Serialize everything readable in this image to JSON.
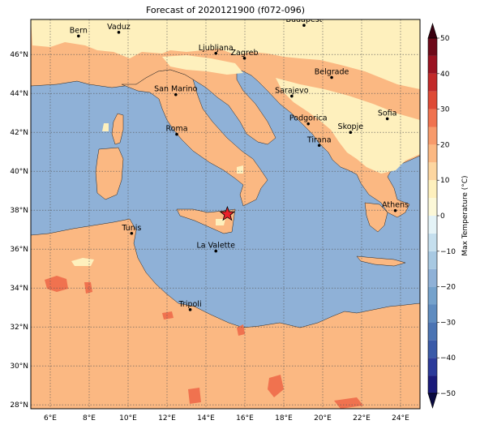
{
  "title": "Forecast of 2020121900 (f072-096)",
  "map": {
    "lon_range": [
      5,
      25
    ],
    "lat_range": [
      27.8,
      47.8
    ],
    "lon_ticks": [
      "6°E",
      "8°E",
      "10°E",
      "12°E",
      "14°E",
      "16°E",
      "18°E",
      "20°E",
      "22°E",
      "24°E"
    ],
    "lon_tick_values": [
      6,
      8,
      10,
      12,
      14,
      16,
      18,
      20,
      22,
      24
    ],
    "lat_ticks": [
      "28°N",
      "30°N",
      "32°N",
      "34°N",
      "36°N",
      "38°N",
      "40°N",
      "42°N",
      "44°N",
      "46°N"
    ],
    "lat_tick_values": [
      28,
      30,
      32,
      34,
      36,
      38,
      40,
      42,
      44,
      46
    ],
    "sea_color": "#8fb1d7",
    "marker": {
      "name": "star-marker",
      "lon": 15.1,
      "lat": 37.8,
      "color": "#e8212a"
    },
    "cities": [
      {
        "name": "Bern",
        "lon": 7.45,
        "lat": 46.95
      },
      {
        "name": "Vaduz",
        "lon": 9.52,
        "lat": 47.14
      },
      {
        "name": "Budapest",
        "lon": 19.04,
        "lat": 47.5
      },
      {
        "name": "Ljubljana",
        "lon": 14.51,
        "lat": 46.06
      },
      {
        "name": "Zagreb",
        "lon": 15.98,
        "lat": 45.81
      },
      {
        "name": "Belgrade",
        "lon": 20.46,
        "lat": 44.82
      },
      {
        "name": "San Marino",
        "lon": 12.45,
        "lat": 43.94
      },
      {
        "name": "Sarajevo",
        "lon": 18.41,
        "lat": 43.86
      },
      {
        "name": "Sofia",
        "lon": 23.32,
        "lat": 42.7
      },
      {
        "name": "Roma",
        "lon": 12.5,
        "lat": 41.9
      },
      {
        "name": "Podgorica",
        "lon": 19.26,
        "lat": 42.44
      },
      {
        "name": "Skopje",
        "lon": 21.43,
        "lat": 42.0
      },
      {
        "name": "Tirana",
        "lon": 19.82,
        "lat": 41.33
      },
      {
        "name": "Athens",
        "lon": 23.73,
        "lat": 37.98
      },
      {
        "name": "Tunis",
        "lon": 10.18,
        "lat": 36.81
      },
      {
        "name": "La Valette",
        "lon": 14.51,
        "lat": 35.9
      },
      {
        "name": "Tripoli",
        "lon": 13.19,
        "lat": 32.89
      }
    ]
  },
  "colorbar": {
    "label": "Max Temperature (°C)",
    "ticks": [
      "−50",
      "−40",
      "−30",
      "−20",
      "−10",
      "0",
      "10",
      "20",
      "30",
      "40",
      "50"
    ],
    "tick_values": [
      -50,
      -40,
      -30,
      -20,
      -10,
      0,
      10,
      20,
      30,
      40,
      50
    ],
    "bins": [
      {
        "from": -50,
        "to": -45,
        "color": "#1a1a7a"
      },
      {
        "from": -45,
        "to": -40,
        "color": "#2b3a9a"
      },
      {
        "from": -40,
        "to": -35,
        "color": "#3a5aa8"
      },
      {
        "from": -35,
        "to": -30,
        "color": "#4b74b3"
      },
      {
        "from": -30,
        "to": -25,
        "color": "#5f8cc0"
      },
      {
        "from": -25,
        "to": -20,
        "color": "#75a2cc"
      },
      {
        "from": -20,
        "to": -15,
        "color": "#8fb1d7"
      },
      {
        "from": -15,
        "to": -10,
        "color": "#a8c9e2"
      },
      {
        "from": -10,
        "to": -5,
        "color": "#c5dfee"
      },
      {
        "from": -5,
        "to": 0,
        "color": "#e4f3f7"
      },
      {
        "from": 0,
        "to": 5,
        "color": "#fcf8d8"
      },
      {
        "from": 5,
        "to": 10,
        "color": "#fef0bd"
      },
      {
        "from": 10,
        "to": 15,
        "color": "#fdd6a0"
      },
      {
        "from": 15,
        "to": 20,
        "color": "#fbb882"
      },
      {
        "from": 20,
        "to": 25,
        "color": "#f79a6b"
      },
      {
        "from": 25,
        "to": 30,
        "color": "#f0724f"
      },
      {
        "from": 30,
        "to": 35,
        "color": "#de4a36"
      },
      {
        "from": 35,
        "to": 40,
        "color": "#c22a2a"
      },
      {
        "from": 40,
        "to": 45,
        "color": "#9a1322"
      },
      {
        "from": 45,
        "to": 50,
        "color": "#6e0a1a"
      }
    ],
    "under_color": "#0a0a40",
    "over_color": "#3a0010"
  }
}
